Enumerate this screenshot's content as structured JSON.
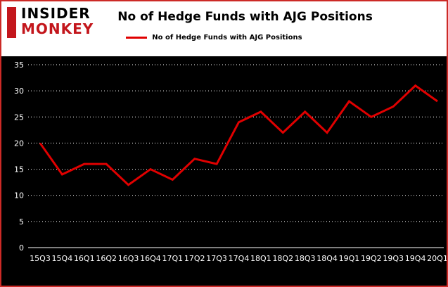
{
  "logo": {
    "line1": "INSIDER",
    "line2": "MONKEY"
  },
  "title": "No of Hedge Funds with AJG Positions",
  "legend": {
    "label": "No of Hedge Funds with AJG Positions"
  },
  "colors": {
    "line": "#e00000",
    "border": "#cc2a26",
    "logo_red": "#c3161c",
    "chart_background": "#000000",
    "grid": "#ffffff",
    "tick_text": "#ffffff"
  },
  "chart_data": {
    "type": "line",
    "title": "No of Hedge Funds with AJG Positions",
    "categories": [
      "15Q3",
      "15Q4",
      "16Q1",
      "16Q2",
      "16Q3",
      "16Q4",
      "17Q1",
      "17Q2",
      "17Q3",
      "17Q4",
      "18Q1",
      "18Q2",
      "18Q3",
      "18Q4",
      "19Q1",
      "19Q2",
      "19Q3",
      "19Q4",
      "20Q1"
    ],
    "values": [
      20,
      14,
      16,
      16,
      12,
      15,
      13,
      17,
      16,
      24,
      26,
      22,
      26,
      22,
      28,
      25,
      27,
      31,
      28
    ],
    "series_name": "No of Hedge Funds with AJG Positions",
    "xlabel": "",
    "ylabel": "",
    "ylim": [
      0,
      35
    ],
    "yticks": [
      0,
      5,
      10,
      15,
      20,
      25,
      30,
      35
    ],
    "grid": true,
    "grid_style": "dotted",
    "legend_position": "top-left"
  }
}
